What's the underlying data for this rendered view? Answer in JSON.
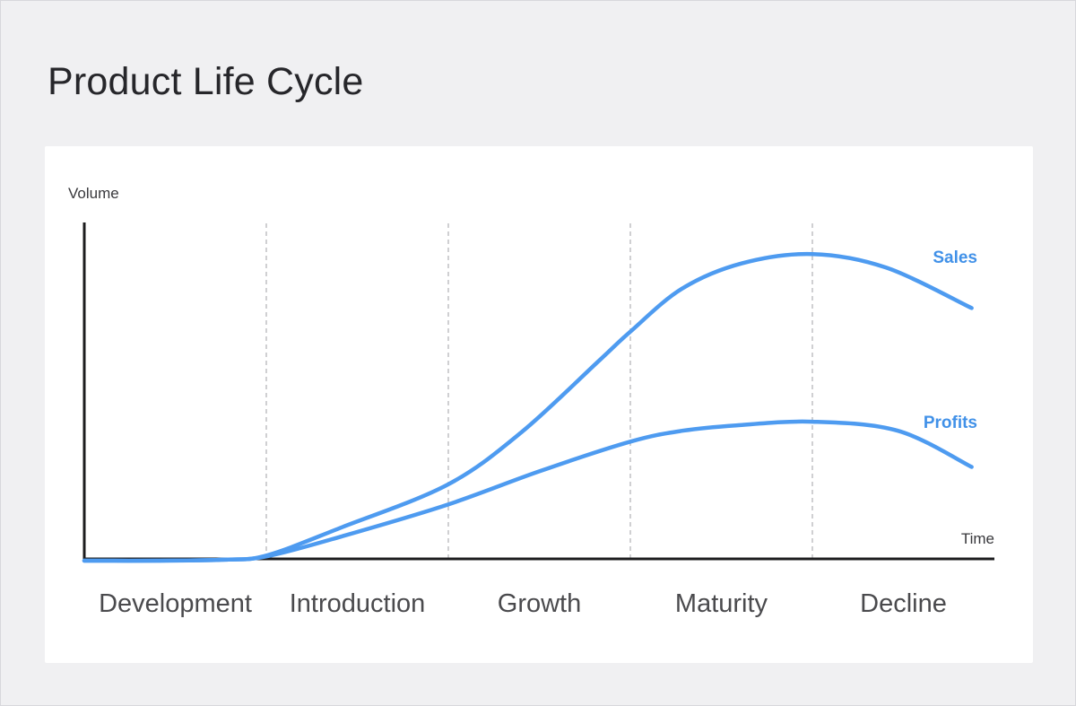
{
  "page": {
    "title": "Product Life Cycle"
  },
  "chart": {
    "y_axis_label": "Volume",
    "x_axis_label": "Time",
    "sales_label": "Sales",
    "profits_label": "Profits"
  },
  "colors": {
    "background": "#F0F0F2",
    "card": "#FFFFFF",
    "title_text": "#26262A",
    "axis": "#1C1C1E",
    "dashed_divider": "#BBBBBE",
    "stage_text": "#4A4A4D",
    "axis_label_text": "#38383C",
    "curve_blue": "#4E9BF0",
    "series_label_blue": "#4191E8"
  },
  "chart_data": {
    "type": "line",
    "title": "Product Life Cycle",
    "xlabel": "Time",
    "ylabel": "Volume",
    "axes_numeric": false,
    "grid": "vertical-dashed-stage-dividers",
    "legend_position": "inline-right-of-curves",
    "stages": [
      "Development",
      "Introduction",
      "Growth",
      "Maturity",
      "Decline"
    ],
    "stage_boundaries_x": [
      0.2,
      0.4,
      0.6,
      0.8
    ],
    "x_range": [
      0,
      1
    ],
    "y_range": [
      0,
      1
    ],
    "series": [
      {
        "name": "Sales",
        "color": "#4E9BF0",
        "points": [
          [
            0.0,
            0.0
          ],
          [
            0.08,
            0.0
          ],
          [
            0.155,
            0.003
          ],
          [
            0.201,
            0.016
          ],
          [
            0.283,
            0.099
          ],
          [
            0.399,
            0.225
          ],
          [
            0.48,
            0.38
          ],
          [
            0.566,
            0.594
          ],
          [
            0.6,
            0.679
          ],
          [
            0.657,
            0.807
          ],
          [
            0.723,
            0.882
          ],
          [
            0.8,
            0.909
          ],
          [
            0.881,
            0.869
          ],
          [
            0.975,
            0.749
          ]
        ]
      },
      {
        "name": "Profits",
        "color": "#4E9BF0",
        "points": [
          [
            0.0,
            0.0
          ],
          [
            0.08,
            0.0
          ],
          [
            0.155,
            0.003
          ],
          [
            0.201,
            0.013
          ],
          [
            0.283,
            0.072
          ],
          [
            0.399,
            0.166
          ],
          [
            0.5,
            0.265
          ],
          [
            0.6,
            0.353
          ],
          [
            0.657,
            0.385
          ],
          [
            0.716,
            0.401
          ],
          [
            0.8,
            0.412
          ],
          [
            0.894,
            0.385
          ],
          [
            0.975,
            0.278
          ]
        ]
      }
    ]
  }
}
